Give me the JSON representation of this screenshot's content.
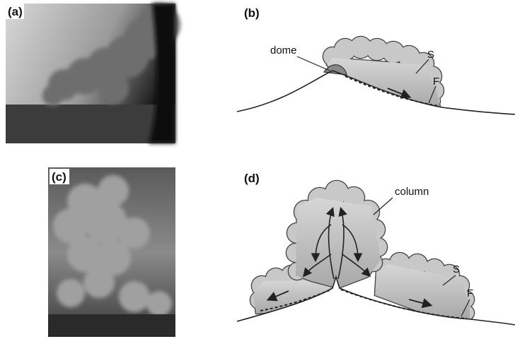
{
  "panels": [
    {
      "label": "(a)"
    },
    {
      "label": "(b)",
      "annotations": [
        "dome",
        "S",
        "F"
      ]
    },
    {
      "label": "(c)"
    },
    {
      "label": "(d)",
      "annotations": [
        "column",
        "S",
        "F"
      ]
    }
  ]
}
